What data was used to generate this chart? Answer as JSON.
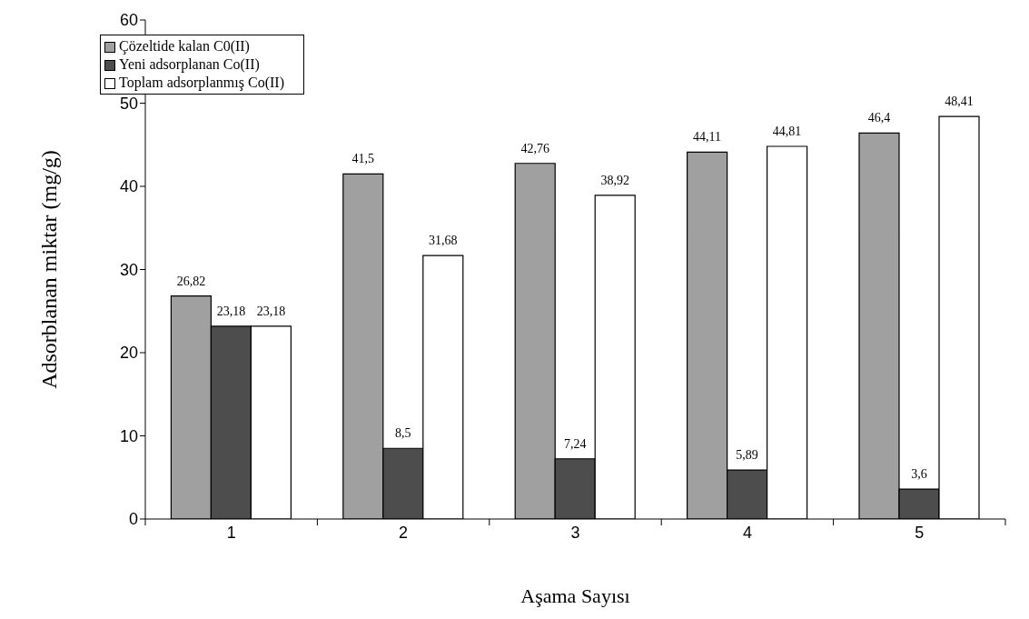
{
  "chart_data": {
    "type": "bar",
    "xlabel": "Aşama Sayısı",
    "ylabel": "Adsorblanan miktar (mg/g)",
    "categories": [
      "1",
      "2",
      "3",
      "4",
      "5"
    ],
    "series": [
      {
        "name": "Çözeltide kalan C0(II)",
        "color": "#a0a0a0",
        "values": [
          26.82,
          41.5,
          42.76,
          44.11,
          46.4
        ],
        "value_labels": [
          "26,82",
          "41,5",
          "42,76",
          "44,11",
          "46,4"
        ]
      },
      {
        "name": "Yeni adsorplanan Co(II)",
        "color": "#4d4d4d",
        "values": [
          23.18,
          8.5,
          7.24,
          5.89,
          3.6
        ],
        "value_labels": [
          "23,18",
          "8,5",
          "7,24",
          "5,89",
          "3,6"
        ]
      },
      {
        "name": "Toplam adsorplanmış Co(II)",
        "color": "#ffffff",
        "values": [
          23.18,
          31.68,
          38.92,
          44.81,
          48.41
        ],
        "value_labels": [
          "23,18",
          "31,68",
          "38,92",
          "44,81",
          "48,41"
        ]
      }
    ],
    "ylim": [
      0,
      60
    ],
    "yticks": [
      0,
      10,
      20,
      30,
      40,
      50,
      60
    ],
    "legend": "top left"
  }
}
